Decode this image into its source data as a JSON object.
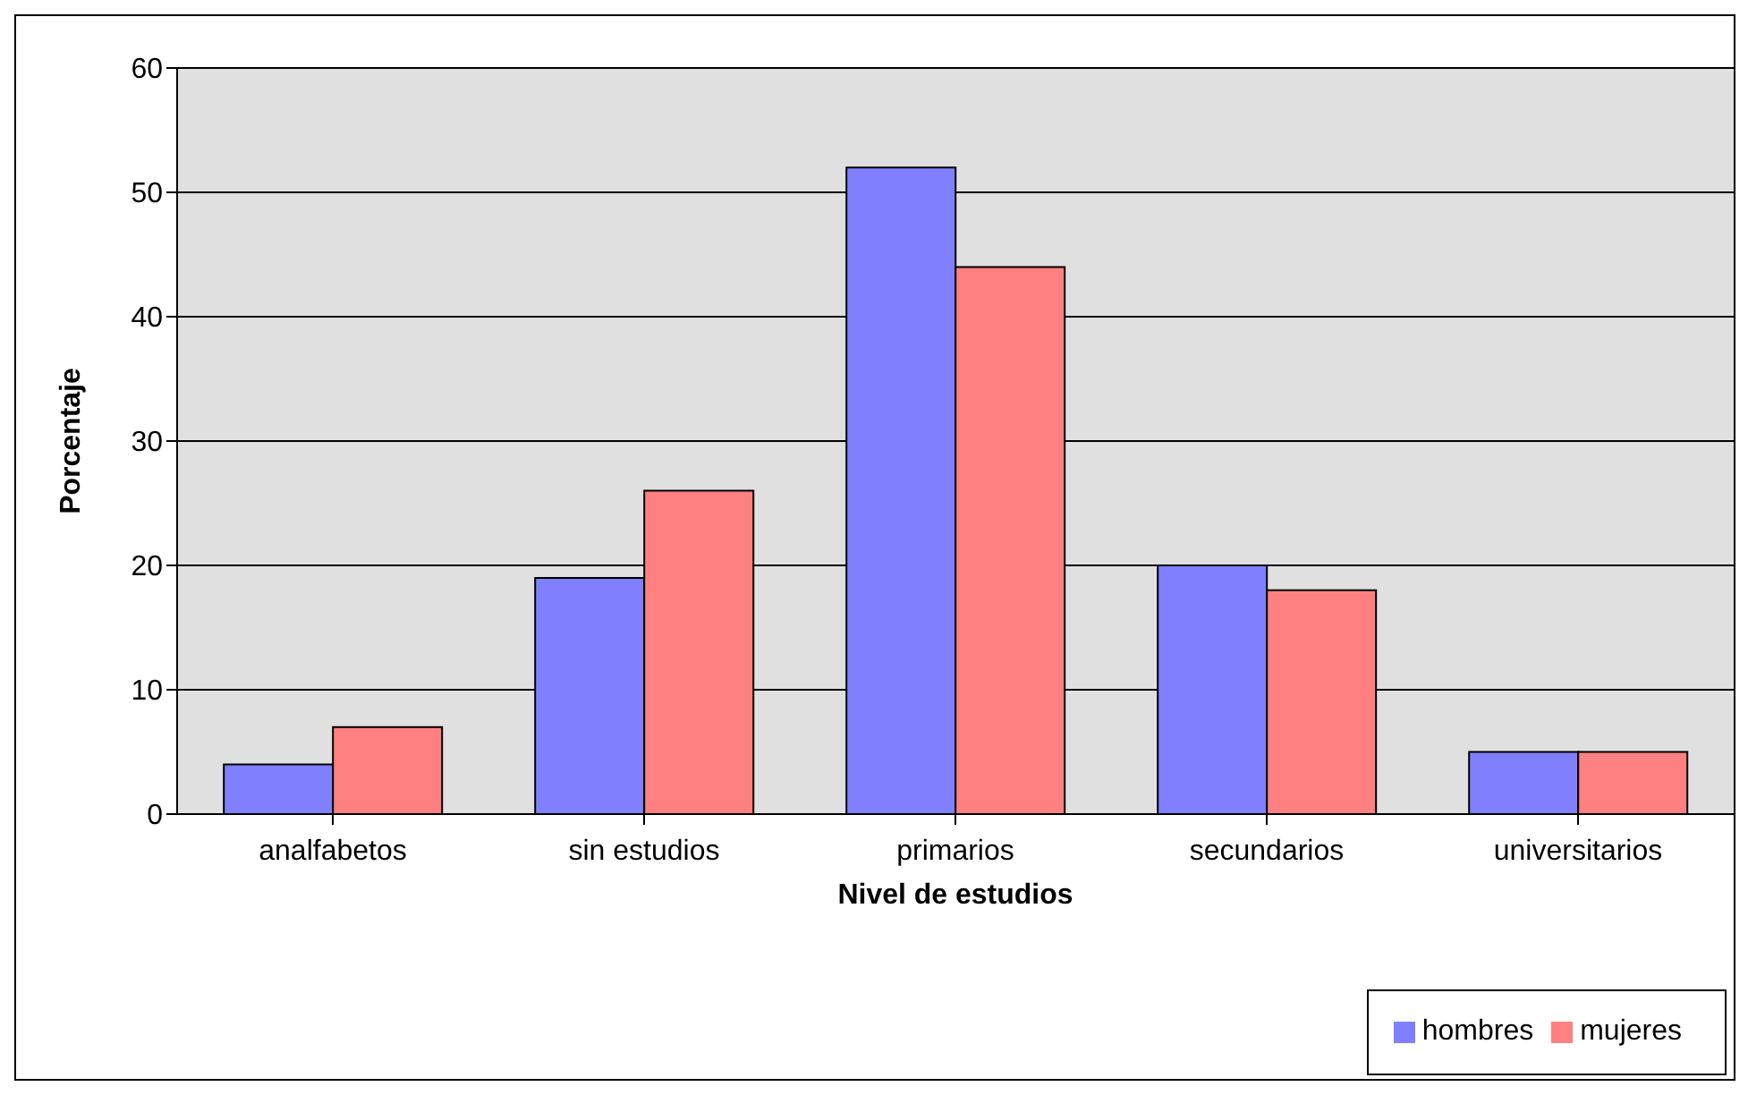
{
  "chart_data": {
    "type": "bar",
    "xlabel": "Nivel de estudios",
    "ylabel": "Porcentaje",
    "categories": [
      "analfabetos",
      "sin estudios",
      "primarios",
      "secundarios",
      "universitarios"
    ],
    "series": [
      {
        "name": "hombres",
        "color": "#8080ff",
        "values": [
          4,
          19,
          52,
          20,
          5
        ]
      },
      {
        "name": "mujeres",
        "color": "#ff8080",
        "values": [
          7,
          26,
          44,
          18,
          5
        ]
      }
    ],
    "ylim": [
      0,
      60
    ],
    "yticks": [
      0,
      10,
      20,
      30,
      40,
      50,
      60
    ],
    "grid": "y",
    "legend": "bottom right"
  }
}
